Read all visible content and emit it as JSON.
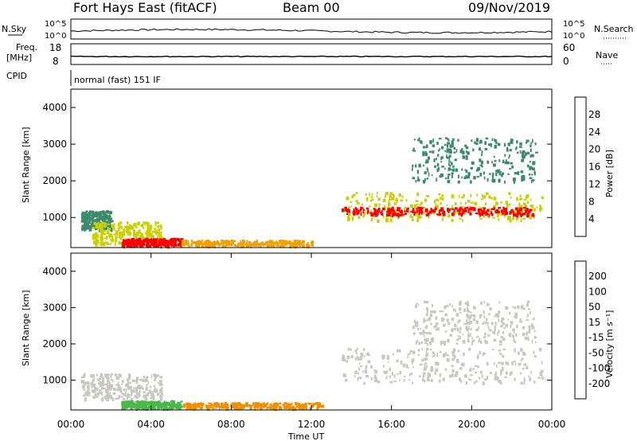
{
  "header": {
    "station": "Fort Hays East (fitACF)",
    "beam": "Beam 00",
    "date": "09/Nov/2019"
  },
  "strips": {
    "nsky_label": "N.Sky",
    "nsearch_label": "N.Search",
    "noise_ticks": [
      "10^5",
      "10^0"
    ],
    "noise_ticks_right": [
      "10^5",
      "10^0"
    ],
    "freq_label_1": "Freq.",
    "freq_label_2": "[MHz]",
    "freq_ticks": [
      "18",
      "8"
    ],
    "nave_label": "Nave",
    "nave_ticks": [
      "60",
      "0"
    ],
    "cpid_label": "CPID",
    "cpid_text": "normal (fast) 151 IF"
  },
  "chart_data": [
    {
      "type": "heatmap",
      "name": "power",
      "ylabel": "Slant Range [km]",
      "xlabel": "",
      "xlim": [
        0,
        24
      ],
      "ylim": [
        180,
        4500
      ],
      "yticks": [
        "1000",
        "2000",
        "3000",
        "4000"
      ],
      "ytick_values": [
        1000,
        2000,
        3000,
        4000
      ],
      "colorbar": {
        "label": "Power [dB]",
        "ticks": [
          "28",
          "24",
          "20",
          "16",
          "12",
          "8",
          "4"
        ],
        "tick_values": [
          28,
          24,
          20,
          16,
          12,
          8,
          4
        ],
        "colors": [
          "#0000ff",
          "#2d54a6",
          "#3c8a6c",
          "#3aa53a",
          "#c8d000",
          "#f0a000",
          "#ff6000",
          "#ff0000"
        ]
      },
      "regions": [
        {
          "t0": 0.5,
          "t1": 2.0,
          "r0": 700,
          "r1": 1200,
          "level": 8
        },
        {
          "t0": 1.0,
          "t1": 4.5,
          "r0": 300,
          "r1": 900,
          "level": 16
        },
        {
          "t0": 2.5,
          "t1": 5.5,
          "r0": 250,
          "r1": 450,
          "level": 28
        },
        {
          "t0": 5.5,
          "t1": 12.0,
          "r0": 250,
          "r1": 400,
          "level": 20
        },
        {
          "t0": 13.5,
          "t1": 23.5,
          "r0": 950,
          "r1": 1700,
          "level": 16
        },
        {
          "t0": 13.5,
          "t1": 23.0,
          "r0": 1100,
          "r1": 1300,
          "level": 28
        },
        {
          "t0": 17.0,
          "t1": 23.2,
          "r0": 2000,
          "r1": 3200,
          "level": 8
        }
      ]
    },
    {
      "type": "heatmap",
      "name": "velocity",
      "ylabel": "Slant Range [km]",
      "xlabel": "Time UT",
      "xlim": [
        0,
        24
      ],
      "ylim": [
        180,
        4500
      ],
      "xticks": [
        "00:00",
        "04:00",
        "08:00",
        "12:00",
        "16:00",
        "20:00",
        "00:00"
      ],
      "xtick_values": [
        0,
        4,
        8,
        12,
        16,
        20,
        24
      ],
      "yticks": [
        "1000",
        "2000",
        "3000",
        "4000"
      ],
      "ytick_values": [
        1000,
        2000,
        3000,
        4000
      ],
      "colorbar": {
        "label": "Velocity [m s⁻¹]",
        "ticks": [
          "200",
          "100",
          "50",
          "15",
          "-15",
          "-50",
          "-100",
          "-200"
        ],
        "tick_values": [
          200,
          100,
          50,
          15,
          -15,
          -50,
          -100,
          -200
        ],
        "colors": [
          "#1a3fb0",
          "#2f7a4a",
          "#48b848",
          "#8ee07a",
          "#c8c8c0",
          "#f2c060",
          "#f09000",
          "#ff5000",
          "#ff0000"
        ]
      },
      "regions": [
        {
          "t0": 0.5,
          "t1": 4.5,
          "r0": 500,
          "r1": 1200,
          "level": 0
        },
        {
          "t0": 2.5,
          "t1": 5.5,
          "r0": 250,
          "r1": 450,
          "level": 50
        },
        {
          "t0": 5.5,
          "t1": 12.5,
          "r0": 250,
          "r1": 400,
          "level": -50
        },
        {
          "t0": 13.5,
          "t1": 23.5,
          "r0": 950,
          "r1": 1900,
          "level": 0
        },
        {
          "t0": 17.0,
          "t1": 23.2,
          "r0": 2000,
          "r1": 3200,
          "level": 0
        }
      ]
    }
  ]
}
